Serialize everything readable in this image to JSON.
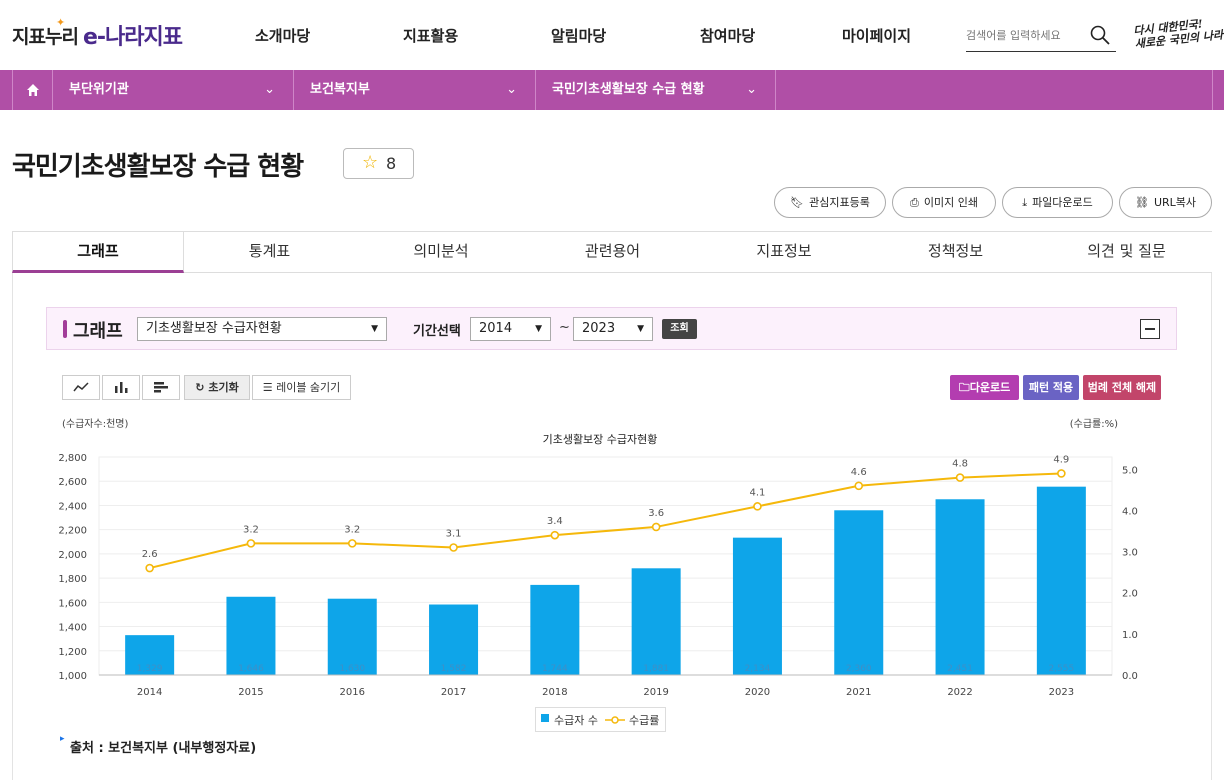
{
  "header": {
    "logo_primary": "지표누리",
    "logo_secondary": "e-나라지표",
    "menu": [
      "소개마당",
      "지표활용",
      "알림마당",
      "참여마당",
      "마이페이지"
    ],
    "search_placeholder": "검색어를 입력하세요",
    "slogan_line1": "다시 대한민국!",
    "slogan_line2": "새로운 국민의 나라"
  },
  "breadcrumb": {
    "home_icon": "home-icon",
    "items": [
      "부단위기관",
      "보건복지부",
      "국민기초생활보장 수급 현황"
    ]
  },
  "page": {
    "title": "국민기초생활보장 수급 현황",
    "favorite_count": "8",
    "actions": [
      "관심지표등록",
      "이미지 인쇄",
      "파일다운로드",
      "URL복사"
    ]
  },
  "tabs": [
    "그래프",
    "통계표",
    "의미분석",
    "관련용어",
    "지표정보",
    "정책정보",
    "의견 및 질문"
  ],
  "active_tab": "그래프",
  "graph_controls": {
    "label": "그래프",
    "chart_select": "기초생활보장 수급자현황",
    "period_label": "기간선택",
    "period_from": "2014",
    "period_to": "2023",
    "tilde": "~",
    "search_button": "조회",
    "tool_reset": "초기화",
    "tool_hide_labels": "레이블 숨기기",
    "download": "다운로드",
    "pattern": "패턴 적용",
    "legend_off": "범례 전체 해제"
  },
  "colors": {
    "brand_purple": "#b04fa6",
    "bar": "#0ea5e9",
    "line": "#f5b80b",
    "download_btn": "#b33db0",
    "pattern_btn": "#6a63c4",
    "legend_off_btn": "#c2456a"
  },
  "chart_data": {
    "type": "bar",
    "title": "기초생활보장 수급자현황",
    "ylabel": "(수급자수:천명)",
    "y2label": "(수급률:%)",
    "categories": [
      "2014",
      "2015",
      "2016",
      "2017",
      "2018",
      "2019",
      "2020",
      "2021",
      "2022",
      "2023"
    ],
    "ylim": [
      1000,
      2800
    ],
    "yticks": [
      "2,800",
      "2,600",
      "2,400",
      "2,200",
      "2,000",
      "1,800",
      "1,600",
      "1,400",
      "1,200",
      "1,000"
    ],
    "y2lim": [
      0,
      5.3
    ],
    "y2ticks": [
      "5.0",
      "4.0",
      "3.0",
      "2.0",
      "1.0",
      "0.0"
    ],
    "series": [
      {
        "name": "수급자 수",
        "type": "bar",
        "values": [
          1329,
          1646,
          1630,
          1582,
          1744,
          1881,
          2134,
          2360,
          2451,
          2555
        ],
        "labels": [
          "1,329",
          "1,646",
          "1,630",
          "1,582",
          "1,744",
          "1,881",
          "2,134",
          "2,360",
          "2,451",
          "2,555"
        ]
      },
      {
        "name": "수급률",
        "type": "line",
        "axis": "right",
        "values": [
          2.6,
          3.2,
          3.2,
          3.1,
          3.4,
          3.6,
          4.1,
          4.6,
          4.8,
          4.9
        ],
        "labels": [
          "2.6",
          "3.2",
          "3.2",
          "3.1",
          "3.4",
          "3.6",
          "4.1",
          "4.6",
          "4.8",
          "4.9"
        ]
      }
    ],
    "grid": true,
    "legend_position": "bottom"
  },
  "source": "출처 : 보건복지부 (내부행정자료)"
}
